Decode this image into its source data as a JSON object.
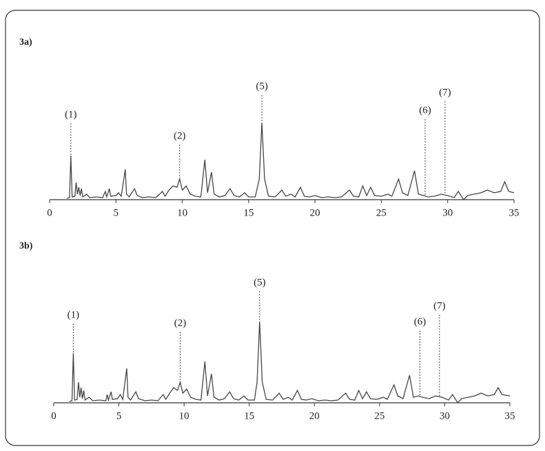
{
  "chart_data": [
    {
      "type": "line",
      "title": "3a)",
      "color": "#444444",
      "x": [
        1.3,
        1.5,
        1.6,
        1.7,
        1.9,
        2.0,
        2.1,
        2.2,
        2.3,
        2.4,
        2.5,
        2.8,
        3.0,
        3.5,
        4.0,
        4.2,
        4.3,
        4.5,
        4.6,
        5.0,
        5.2,
        5.4,
        5.7,
        5.8,
        6.0,
        6.4,
        6.6,
        7.0,
        7.5,
        8.0,
        8.5,
        8.7,
        9.0,
        9.3,
        9.6,
        9.8,
        10.0,
        10.3,
        10.6,
        11.0,
        11.4,
        11.7,
        11.9,
        12.2,
        12.4,
        12.8,
        13.2,
        13.6,
        13.9,
        14.3,
        14.7,
        15.0,
        15.5,
        15.8,
        16.0,
        16.2,
        16.5,
        17.0,
        17.5,
        17.8,
        18.2,
        18.5,
        18.9,
        19.2,
        19.6,
        20.0,
        20.5,
        21.0,
        21.5,
        22.0,
        22.6,
        22.9,
        23.3,
        23.6,
        23.9,
        24.2,
        24.5,
        25.0,
        25.5,
        25.8,
        26.3,
        26.6,
        27.0,
        27.5,
        27.8,
        28.2,
        28.5,
        29.0,
        29.5,
        30.0,
        30.5,
        30.8,
        31.2,
        31.5,
        32.0,
        32.5,
        33.0,
        33.5,
        34.0,
        34.3,
        34.6,
        35.0
      ],
      "values": [
        2,
        3,
        64,
        4,
        5,
        25,
        8,
        18,
        6,
        16,
        4,
        8,
        3,
        4,
        3,
        12,
        4,
        16,
        5,
        6,
        10,
        5,
        44,
        8,
        4,
        16,
        6,
        3,
        4,
        3,
        12,
        5,
        14,
        20,
        18,
        30,
        14,
        20,
        8,
        5,
        4,
        58,
        10,
        40,
        8,
        4,
        6,
        16,
        6,
        4,
        10,
        4,
        4,
        30,
        112,
        30,
        5,
        4,
        14,
        5,
        8,
        4,
        18,
        5,
        4,
        6,
        3,
        4,
        3,
        4,
        14,
        5,
        4,
        20,
        6,
        18,
        6,
        5,
        8,
        5,
        30,
        10,
        6,
        42,
        8,
        6,
        4,
        5,
        8,
        6,
        3,
        12,
        0,
        6,
        8,
        10,
        14,
        10,
        12,
        26,
        12,
        10
      ],
      "xlim": [
        0,
        35
      ],
      "xticks": [
        0,
        5,
        10,
        15,
        20,
        25,
        30,
        35
      ],
      "ylim": [
        0,
        170
      ],
      "annotations": [
        {
          "label": "(1)",
          "x": 1.6
        },
        {
          "label": "(2)",
          "x": 9.8
        },
        {
          "label": "(5)",
          "x": 16.0
        },
        {
          "label": "(6)",
          "x": 28.3
        },
        {
          "label": "(7)",
          "x": 29.8
        }
      ]
    },
    {
      "type": "line",
      "title": "3b)",
      "color": "#444444",
      "x": [
        1.2,
        1.4,
        1.5,
        1.6,
        1.8,
        1.9,
        2.0,
        2.1,
        2.2,
        2.3,
        2.4,
        2.7,
        3.0,
        3.5,
        4.0,
        4.1,
        4.2,
        4.4,
        4.5,
        4.9,
        5.1,
        5.3,
        5.6,
        5.7,
        5.9,
        6.3,
        6.5,
        7.0,
        7.5,
        8.0,
        8.4,
        8.6,
        8.9,
        9.2,
        9.5,
        9.7,
        9.9,
        10.2,
        10.5,
        10.9,
        11.3,
        11.6,
        11.8,
        12.1,
        12.3,
        12.7,
        13.1,
        13.5,
        13.8,
        14.2,
        14.6,
        14.9,
        15.4,
        15.6,
        15.8,
        16.0,
        16.3,
        16.8,
        17.3,
        17.6,
        18.0,
        18.3,
        18.7,
        19.0,
        19.4,
        19.8,
        20.3,
        20.8,
        21.3,
        21.8,
        22.4,
        22.7,
        23.1,
        23.4,
        23.7,
        24.0,
        24.3,
        24.8,
        25.3,
        25.6,
        26.1,
        26.4,
        26.8,
        27.3,
        27.6,
        28.0,
        28.3,
        28.8,
        29.3,
        29.8,
        30.3,
        30.6,
        31.0,
        31.3,
        31.8,
        32.3,
        32.8,
        33.3,
        33.8,
        34.1,
        34.4,
        35.0
      ],
      "values": [
        2,
        3,
        72,
        4,
        5,
        30,
        8,
        22,
        6,
        18,
        4,
        8,
        3,
        4,
        3,
        12,
        4,
        16,
        5,
        6,
        12,
        5,
        50,
        8,
        4,
        16,
        6,
        3,
        4,
        3,
        12,
        5,
        14,
        22,
        18,
        30,
        14,
        20,
        8,
        5,
        4,
        60,
        10,
        42,
        8,
        4,
        6,
        16,
        6,
        4,
        10,
        4,
        4,
        30,
        118,
        30,
        5,
        4,
        14,
        5,
        8,
        4,
        18,
        5,
        4,
        6,
        3,
        4,
        3,
        4,
        14,
        5,
        4,
        18,
        6,
        16,
        6,
        5,
        8,
        5,
        26,
        10,
        6,
        40,
        8,
        10,
        8,
        6,
        10,
        8,
        4,
        12,
        0,
        6,
        8,
        10,
        14,
        10,
        12,
        22,
        12,
        10
      ],
      "xlim": [
        0,
        35
      ],
      "xticks": [
        0,
        5,
        10,
        15,
        20,
        25,
        30,
        35
      ],
      "ylim": [
        0,
        170
      ],
      "annotations": [
        {
          "label": "(1)",
          "x": 1.5
        },
        {
          "label": "(2)",
          "x": 9.7
        },
        {
          "label": "(5)",
          "x": 15.8
        },
        {
          "label": "(6)",
          "x": 28.1
        },
        {
          "label": "(7)",
          "x": 29.6
        }
      ]
    }
  ]
}
